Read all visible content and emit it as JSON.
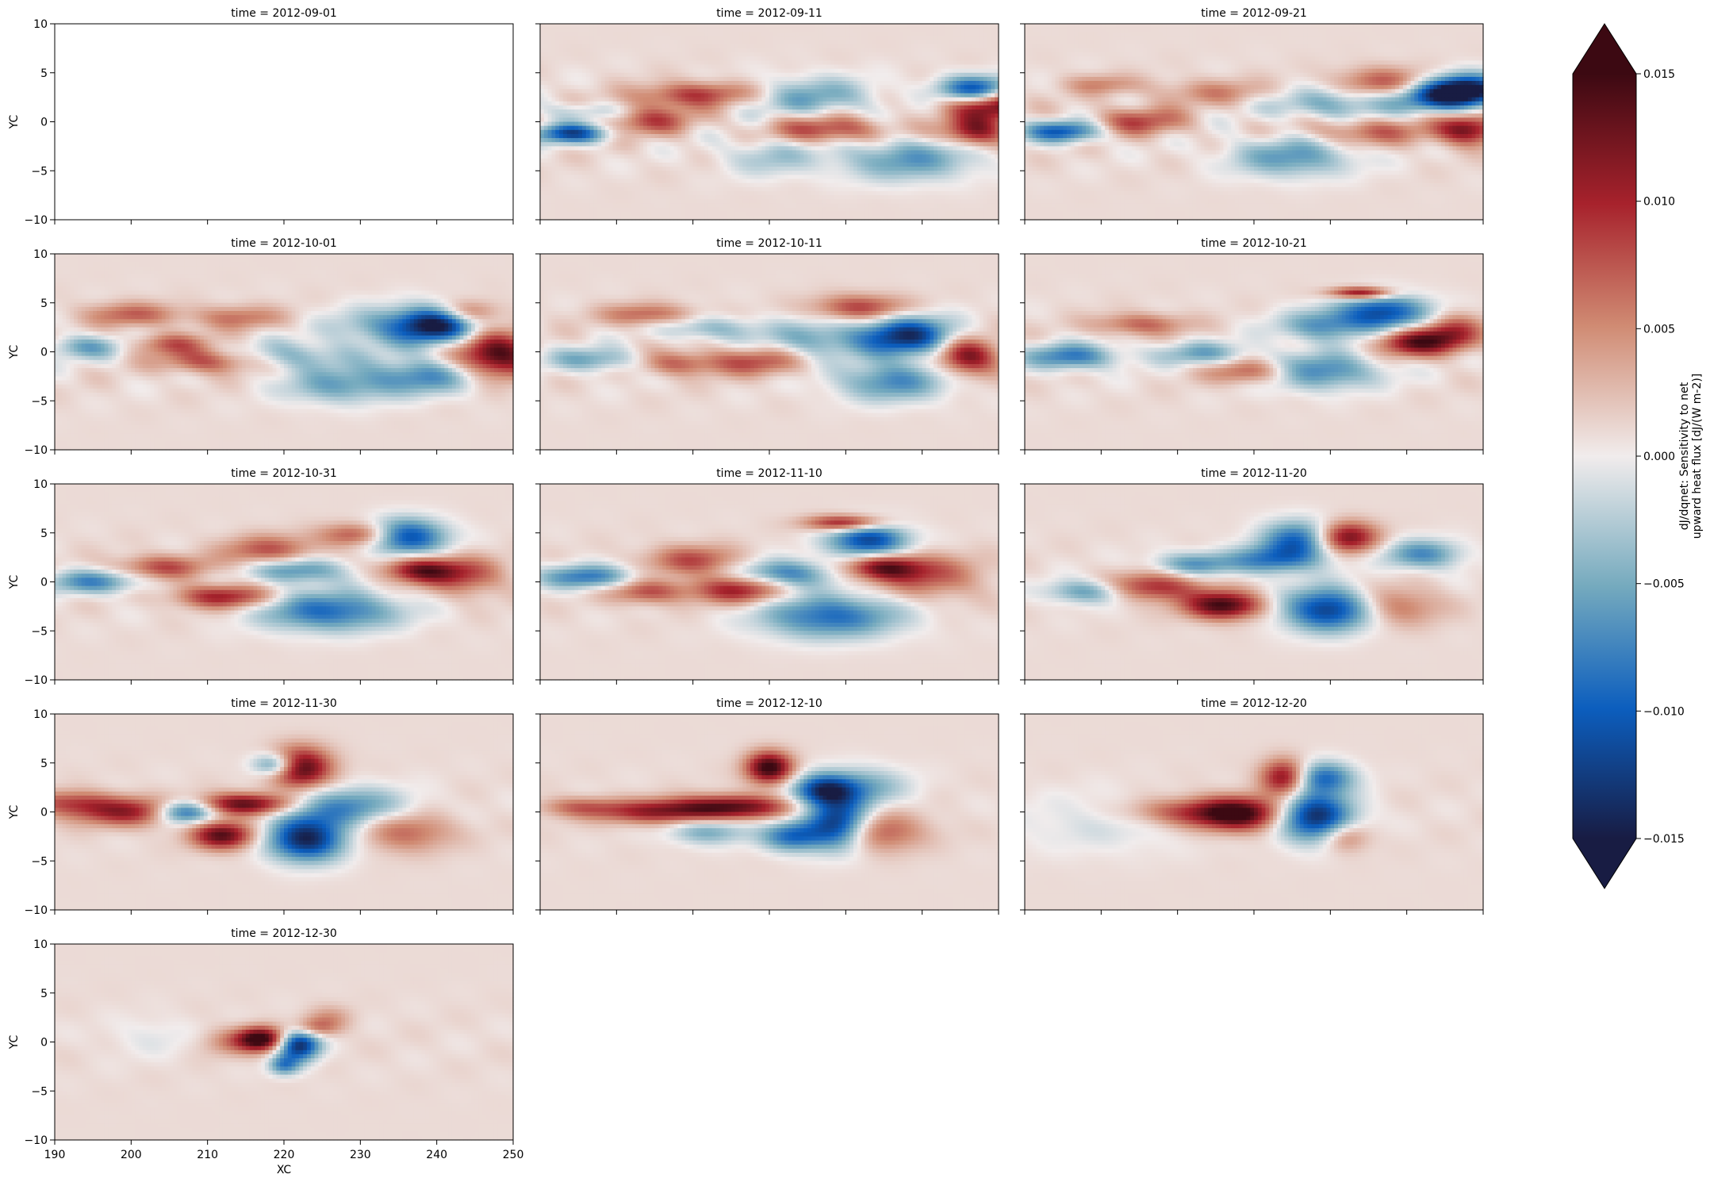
{
  "chart_data": {
    "type": "heatmap",
    "layout": "facet-grid",
    "ncols": 3,
    "facet_variable": "time",
    "panel_titles": [
      "time = 2012-09-01",
      "time = 2012-09-11",
      "time = 2012-09-21",
      "time = 2012-10-01",
      "time = 2012-10-11",
      "time = 2012-10-21",
      "time = 2012-10-31",
      "time = 2012-11-10",
      "time = 2012-11-20",
      "time = 2012-11-30",
      "time = 2012-12-10",
      "time = 2012-12-20",
      "time = 2012-12-30"
    ],
    "xlabel": "XC",
    "ylabel": "YC",
    "xlim": [
      190,
      250
    ],
    "ylim": [
      -10,
      10
    ],
    "xticks": [
      190,
      200,
      210,
      220,
      230,
      240,
      250
    ],
    "yticks": [
      -10,
      -5,
      0,
      5,
      10
    ],
    "xtick_labels": [
      "190",
      "200",
      "210",
      "220",
      "230",
      "240",
      "250"
    ],
    "ytick_labels": [
      "−10",
      "−5",
      "0",
      "5",
      "10"
    ],
    "colorbar": {
      "label_line1": "dJ/dqnet: Sensitivity to net",
      "label_line2": "upward heat flux [dJ/(W m-2)]",
      "vmin": -0.015,
      "vmax": 0.015,
      "extend": "both",
      "ticks": [
        -0.015,
        -0.01,
        -0.005,
        0.0,
        0.005,
        0.01,
        0.015
      ],
      "tick_labels": [
        "−0.015",
        "−0.010",
        "−0.005",
        "0.000",
        "0.005",
        "0.010",
        "0.015"
      ],
      "colormap": "balance",
      "colors": [
        "#181c43",
        "#0c5ebe",
        "#75aabe",
        "#f1ecec",
        "#d08b73",
        "#a7222c",
        "#3c0912"
      ]
    },
    "panel_features": [
      {
        "empty": true,
        "blobs": []
      },
      {
        "blobs": [
          [
            250,
            1.8,
            7,
            1.6,
            0.013
          ],
          [
            247,
            3.2,
            5,
            1.4,
            -0.014
          ],
          [
            226,
            2.5,
            8,
            2,
            -0.006
          ],
          [
            212,
            3,
            7,
            1.2,
            0.005
          ],
          [
            194,
            -1.2,
            5,
            1,
            -0.012
          ],
          [
            204,
            0.2,
            6,
            1.5,
            0.007
          ],
          [
            238,
            -3.8,
            9,
            2.2,
            -0.007
          ],
          [
            220,
            -3.5,
            6,
            2,
            -0.004
          ],
          [
            228,
            -0.8,
            8,
            1.4,
            0.008
          ],
          [
            208,
            2.5,
            7,
            1.2,
            0.004
          ],
          [
            196,
            1,
            6,
            1,
            -0.004
          ],
          [
            247,
            -1,
            4,
            1.5,
            0.011
          ]
        ]
      },
      {
        "blobs": [
          [
            248,
            3.2,
            5,
            1.6,
            -0.015
          ],
          [
            244,
            2.6,
            6,
            1.6,
            -0.01
          ],
          [
            237,
            4,
            6,
            1.5,
            0.007
          ],
          [
            230,
            1.8,
            8,
            1.6,
            -0.006
          ],
          [
            248,
            -0.8,
            4,
            1.5,
            0.012
          ],
          [
            195,
            -1,
            5,
            1.1,
            -0.011
          ],
          [
            205,
            0,
            6,
            1.4,
            0.007
          ],
          [
            225,
            -3.6,
            8,
            2,
            -0.007
          ],
          [
            235,
            -1,
            8,
            1.4,
            0.006
          ],
          [
            215,
            3,
            8,
            1.3,
            0.004
          ],
          [
            200,
            3.8,
            5,
            1,
            0.004
          ]
        ]
      },
      {
        "blobs": [
          [
            240,
            2.8,
            5,
            1.8,
            -0.015
          ],
          [
            248,
            -0.4,
            5,
            2.2,
            0.014
          ],
          [
            233,
            2.5,
            7,
            2,
            -0.006
          ],
          [
            238,
            -2.5,
            7,
            1.8,
            -0.008
          ],
          [
            210,
            -1,
            6,
            1.2,
            0.007
          ],
          [
            200,
            3.8,
            6,
            1.2,
            0.006
          ],
          [
            194,
            0.5,
            5,
            1.2,
            -0.006
          ],
          [
            222,
            -0.4,
            7,
            1.5,
            -0.005
          ],
          [
            214,
            3.5,
            6,
            1.2,
            0.005
          ],
          [
            227,
            -3.5,
            7,
            1.8,
            -0.006
          ],
          [
            205,
            0.8,
            5,
            1.1,
            0.006
          ],
          [
            244,
            4,
            4,
            1.2,
            0.007
          ]
        ]
      },
      {
        "blobs": [
          [
            238,
            1.6,
            6,
            2,
            -0.014
          ],
          [
            246,
            -0.5,
            4,
            1.8,
            0.012
          ],
          [
            236,
            -3,
            7,
            2,
            -0.008
          ],
          [
            218,
            -1,
            6,
            1.4,
            0.007
          ],
          [
            204,
            3.8,
            6,
            1.1,
            0.006
          ],
          [
            197,
            -0.8,
            6,
            1.2,
            -0.006
          ],
          [
            226,
            1.3,
            7,
            1.8,
            -0.006
          ],
          [
            232,
            4.5,
            6,
            1.3,
            0.008
          ],
          [
            212,
            2.4,
            6,
            1.2,
            -0.005
          ],
          [
            208,
            -1.2,
            5,
            1.2,
            0.006
          ]
        ]
      },
      {
        "blobs": [
          [
            237,
            4,
            6,
            1.8,
            -0.012
          ],
          [
            241,
            1,
            5,
            1.4,
            0.012
          ],
          [
            228,
            -2,
            8,
            1.8,
            -0.009
          ],
          [
            196,
            -0.5,
            6,
            1.3,
            -0.009
          ],
          [
            220,
            -2,
            6,
            1.3,
            0.008
          ],
          [
            229,
            2.6,
            6,
            1.6,
            -0.007
          ],
          [
            246,
            2,
            4,
            1.8,
            0.008
          ],
          [
            205,
            2.8,
            6,
            1.1,
            0.006
          ],
          [
            213,
            -0.2,
            6,
            1.2,
            -0.006
          ],
          [
            234,
            6,
            4,
            0.6,
            0.012
          ]
        ]
      },
      {
        "blobs": [
          [
            236,
            4.6,
            5,
            1.8,
            -0.013
          ],
          [
            238,
            1.2,
            5,
            1.3,
            0.012
          ],
          [
            226,
            -3,
            9,
            2,
            -0.01
          ],
          [
            212,
            -1.5,
            6,
            1.2,
            0.01
          ],
          [
            222,
            1.2,
            6,
            1.3,
            -0.008
          ],
          [
            195,
            0,
            6,
            1.2,
            -0.008
          ],
          [
            218,
            3.2,
            6,
            1.5,
            0.007
          ],
          [
            204,
            1.5,
            6,
            1.2,
            0.007
          ],
          [
            244,
            0.5,
            5,
            2,
            0.006
          ],
          [
            230,
            4.8,
            5,
            1.2,
            0.008
          ]
        ]
      },
      {
        "blobs": [
          [
            233,
            4.2,
            5,
            1.8,
            -0.013
          ],
          [
            235,
            1.5,
            5,
            1.3,
            0.012
          ],
          [
            228,
            -3.5,
            9,
            2.2,
            -0.01
          ],
          [
            216,
            -0.8,
            6,
            1.4,
            0.01
          ],
          [
            222,
            0.8,
            6,
            1.4,
            -0.009
          ],
          [
            196,
            0.5,
            6,
            1.2,
            -0.009
          ],
          [
            210,
            2.2,
            6,
            1.5,
            0.007
          ],
          [
            241,
            0.5,
            7,
            2.2,
            0.006
          ],
          [
            204,
            -1,
            5,
            1.2,
            0.007
          ],
          [
            230,
            6,
            5,
            0.8,
            0.011
          ]
        ]
      },
      {
        "blobs": [
          [
            230,
            -2.8,
            6,
            2.2,
            -0.014
          ],
          [
            226,
            4.2,
            5,
            2,
            -0.011
          ],
          [
            232,
            4.5,
            4,
            1.6,
            0.013
          ],
          [
            216,
            -2.4,
            5,
            1.4,
            0.014
          ],
          [
            222,
            2.2,
            6,
            1.4,
            -0.008
          ],
          [
            207,
            -0.5,
            6,
            1.4,
            0.009
          ],
          [
            198,
            -1,
            5,
            1.2,
            -0.007
          ],
          [
            238,
            -2.5,
            6,
            2,
            0.006
          ],
          [
            212,
            1.8,
            5,
            1.2,
            -0.007
          ],
          [
            242,
            2.8,
            5,
            1.5,
            -0.008
          ]
        ]
      },
      {
        "blobs": [
          [
            223,
            -2.8,
            5,
            2.2,
            -0.015
          ],
          [
            222,
            4.5,
            4,
            2,
            0.015
          ],
          [
            215,
            0.8,
            6,
            1.1,
            0.013
          ],
          [
            207,
            0,
            4,
            1.2,
            -0.014
          ],
          [
            212,
            -2.4,
            4,
            1.4,
            0.013
          ],
          [
            228,
            0.5,
            8,
            2,
            -0.008
          ],
          [
            200,
            0,
            8,
            1.4,
            0.01
          ],
          [
            236,
            -2,
            6,
            2,
            0.006
          ],
          [
            192,
            1,
            6,
            1.2,
            0.006
          ],
          [
            219,
            4.8,
            3,
            1.2,
            -0.011
          ]
        ]
      },
      {
        "blobs": [
          [
            229,
            -1.2,
            4,
            2.5,
            -0.015
          ],
          [
            220,
            4.5,
            3,
            1.6,
            0.015
          ],
          [
            227,
            2.2,
            4,
            1.6,
            -0.012
          ],
          [
            215,
            0.5,
            8,
            1.2,
            0.012
          ],
          [
            205,
            0,
            8,
            1.2,
            0.009
          ],
          [
            232,
            2.5,
            6,
            2,
            -0.006
          ],
          [
            234,
            -2,
            6,
            2,
            0.007
          ],
          [
            223,
            -2.5,
            4,
            1.5,
            -0.01
          ],
          [
            195,
            0.5,
            5,
            1,
            0.005
          ],
          [
            212,
            -2,
            5,
            1.3,
            -0.006
          ]
        ]
      },
      {
        "blobs": [
          [
            218,
            -0.2,
            6,
            1.7,
            0.015
          ],
          [
            228,
            -0.5,
            5,
            2.4,
            -0.015
          ],
          [
            224,
            3.5,
            3,
            1.8,
            0.012
          ],
          [
            229,
            3.5,
            4,
            1.6,
            -0.01
          ],
          [
            210,
            0,
            7,
            1.4,
            0.006
          ],
          [
            232,
            -2.5,
            3,
            1.5,
            0.006
          ],
          [
            200,
            -1.2,
            12,
            3,
            -0.002
          ]
        ]
      },
      {
        "blobs": [
          [
            222,
            -0.3,
            2.7,
            1.6,
            -0.015
          ],
          [
            217,
            0.3,
            3,
            1.2,
            0.015
          ],
          [
            224,
            1.4,
            3,
            1,
            0.006
          ],
          [
            213,
            0,
            4,
            1.4,
            0.004
          ],
          [
            220,
            -2.4,
            2,
            1,
            -0.008
          ],
          [
            226,
            2.5,
            3,
            1.2,
            0.003
          ],
          [
            203,
            0.5,
            6,
            2,
            -0.0015
          ]
        ]
      }
    ]
  }
}
